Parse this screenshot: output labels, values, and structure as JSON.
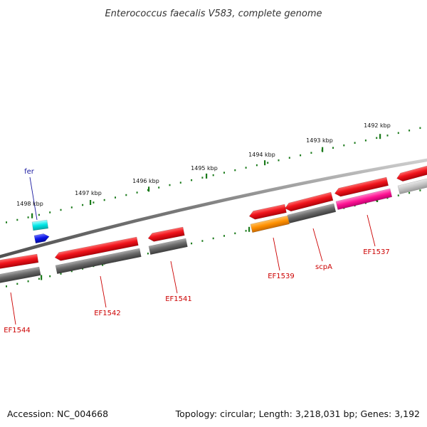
{
  "title": "Enterococcus faecalis V583, complete genome",
  "footer": {
    "accession": "Accession: NC_004668",
    "topology": "Topology: circular; Length: 3,218,031 bp; Genes: 3,192"
  },
  "colors": {
    "red": "#e8141c",
    "gray": "#6b6b6b",
    "light_gray": "#c4c4c4",
    "orange": "#ff9000",
    "magenta": "#ff1493",
    "cyan": "#00e5e5",
    "blue": "#0a14e6",
    "tick_green": "#1a7a1a",
    "label_red": "#cc0000",
    "label_blue": "#1a1aa0"
  },
  "kbp_labels": [
    "1492 kbp",
    "1493 kbp",
    "1494 kbp",
    "1495 kbp",
    "1496 kbp",
    "1497 kbp",
    "1498 kbp"
  ],
  "gene_labels": [
    {
      "text": "fer",
      "color": "label_blue"
    },
    {
      "text": "EF1537",
      "color": "label_red"
    },
    {
      "text": "scpA",
      "color": "label_red"
    },
    {
      "text": "EF1539",
      "color": "label_red"
    },
    {
      "text": "EF1541",
      "color": "label_red"
    },
    {
      "text": "EF1542",
      "color": "label_red"
    },
    {
      "text": "EF1544",
      "color": "label_red"
    }
  ]
}
